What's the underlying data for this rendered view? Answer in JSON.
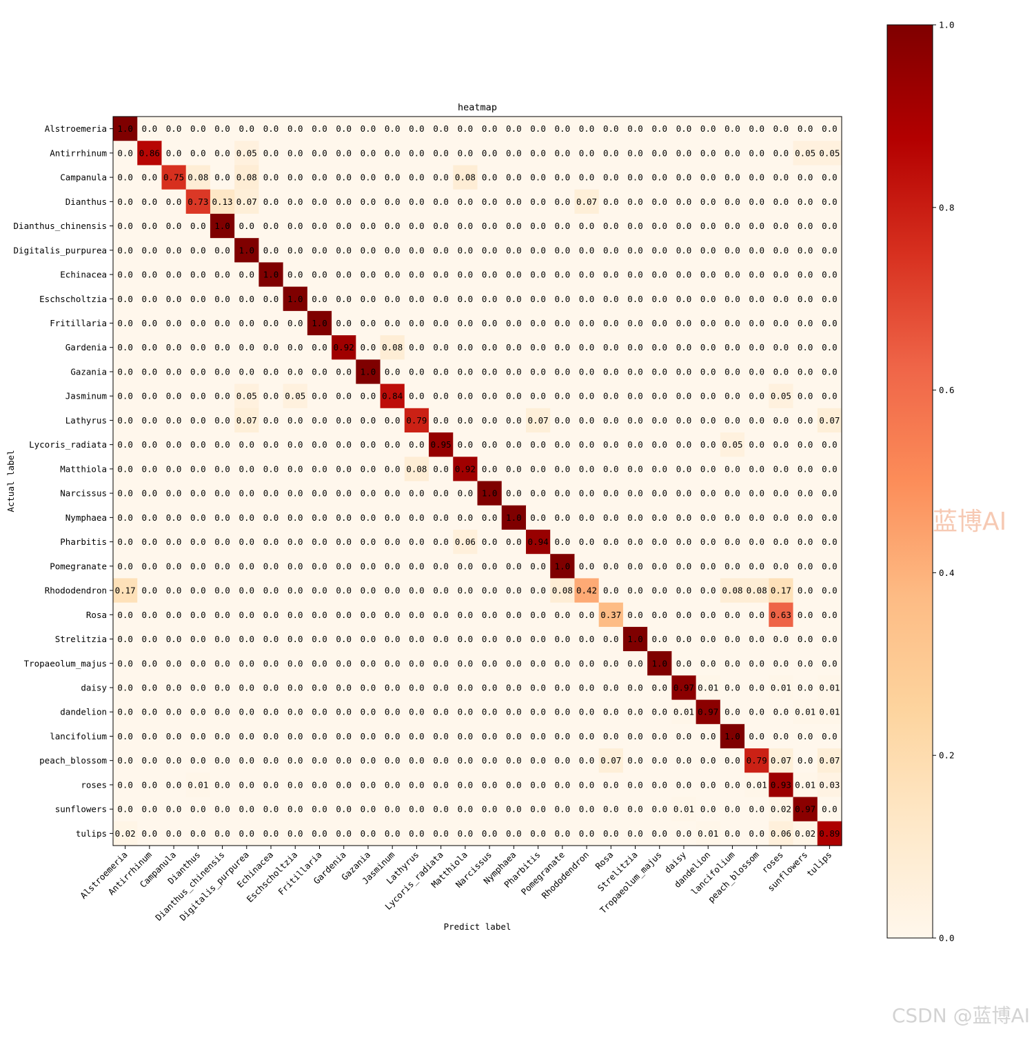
{
  "chart_data": {
    "type": "heatmap",
    "title": "heatmap",
    "xlabel": "Predict label",
    "ylabel": "Actual label",
    "labels": [
      "Alstroemeria",
      "Antirrhinum",
      "Campanula",
      "Dianthus",
      "Dianthus_chinensis",
      "Digitalis_purpurea",
      "Echinacea",
      "Eschscholtzia",
      "Fritillaria",
      "Gardenia",
      "Gazania",
      "Jasminum",
      "Lathyrus",
      "Lycoris_radiata",
      "Matthiola",
      "Narcissus",
      "Nymphaea",
      "Pharbitis",
      "Pomegranate",
      "Rhododendron",
      "Rosa",
      "Strelitzia",
      "Tropaeolum_majus",
      "daisy",
      "dandelion",
      "lancifolium",
      "peach_blossom",
      "roses",
      "sunflowers",
      "tulips"
    ],
    "values": [
      [
        "1.0",
        "0.0",
        "0.0",
        "0.0",
        "0.0",
        "0.0",
        "0.0",
        "0.0",
        "0.0",
        "0.0",
        "0.0",
        "0.0",
        "0.0",
        "0.0",
        "0.0",
        "0.0",
        "0.0",
        "0.0",
        "0.0",
        "0.0",
        "0.0",
        "0.0",
        "0.0",
        "0.0",
        "0.0",
        "0.0",
        "0.0",
        "0.0",
        "0.0",
        "0.0"
      ],
      [
        "0.0",
        "0.86",
        "0.0",
        "0.0",
        "0.0",
        "0.05",
        "0.0",
        "0.0",
        "0.0",
        "0.0",
        "0.0",
        "0.0",
        "0.0",
        "0.0",
        "0.0",
        "0.0",
        "0.0",
        "0.0",
        "0.0",
        "0.0",
        "0.0",
        "0.0",
        "0.0",
        "0.0",
        "0.0",
        "0.0",
        "0.0",
        "0.0",
        "0.05",
        "0.05"
      ],
      [
        "0.0",
        "0.0",
        "0.75",
        "0.08",
        "0.0",
        "0.08",
        "0.0",
        "0.0",
        "0.0",
        "0.0",
        "0.0",
        "0.0",
        "0.0",
        "0.0",
        "0.08",
        "0.0",
        "0.0",
        "0.0",
        "0.0",
        "0.0",
        "0.0",
        "0.0",
        "0.0",
        "0.0",
        "0.0",
        "0.0",
        "0.0",
        "0.0",
        "0.0",
        "0.0"
      ],
      [
        "0.0",
        "0.0",
        "0.0",
        "0.73",
        "0.13",
        "0.07",
        "0.0",
        "0.0",
        "0.0",
        "0.0",
        "0.0",
        "0.0",
        "0.0",
        "0.0",
        "0.0",
        "0.0",
        "0.0",
        "0.0",
        "0.0",
        "0.07",
        "0.0",
        "0.0",
        "0.0",
        "0.0",
        "0.0",
        "0.0",
        "0.0",
        "0.0",
        "0.0",
        "0.0"
      ],
      [
        "0.0",
        "0.0",
        "0.0",
        "0.0",
        "1.0",
        "0.0",
        "0.0",
        "0.0",
        "0.0",
        "0.0",
        "0.0",
        "0.0",
        "0.0",
        "0.0",
        "0.0",
        "0.0",
        "0.0",
        "0.0",
        "0.0",
        "0.0",
        "0.0",
        "0.0",
        "0.0",
        "0.0",
        "0.0",
        "0.0",
        "0.0",
        "0.0",
        "0.0",
        "0.0"
      ],
      [
        "0.0",
        "0.0",
        "0.0",
        "0.0",
        "0.0",
        "1.0",
        "0.0",
        "0.0",
        "0.0",
        "0.0",
        "0.0",
        "0.0",
        "0.0",
        "0.0",
        "0.0",
        "0.0",
        "0.0",
        "0.0",
        "0.0",
        "0.0",
        "0.0",
        "0.0",
        "0.0",
        "0.0",
        "0.0",
        "0.0",
        "0.0",
        "0.0",
        "0.0",
        "0.0"
      ],
      [
        "0.0",
        "0.0",
        "0.0",
        "0.0",
        "0.0",
        "0.0",
        "1.0",
        "0.0",
        "0.0",
        "0.0",
        "0.0",
        "0.0",
        "0.0",
        "0.0",
        "0.0",
        "0.0",
        "0.0",
        "0.0",
        "0.0",
        "0.0",
        "0.0",
        "0.0",
        "0.0",
        "0.0",
        "0.0",
        "0.0",
        "0.0",
        "0.0",
        "0.0",
        "0.0"
      ],
      [
        "0.0",
        "0.0",
        "0.0",
        "0.0",
        "0.0",
        "0.0",
        "0.0",
        "1.0",
        "0.0",
        "0.0",
        "0.0",
        "0.0",
        "0.0",
        "0.0",
        "0.0",
        "0.0",
        "0.0",
        "0.0",
        "0.0",
        "0.0",
        "0.0",
        "0.0",
        "0.0",
        "0.0",
        "0.0",
        "0.0",
        "0.0",
        "0.0",
        "0.0",
        "0.0"
      ],
      [
        "0.0",
        "0.0",
        "0.0",
        "0.0",
        "0.0",
        "0.0",
        "0.0",
        "0.0",
        "1.0",
        "0.0",
        "0.0",
        "0.0",
        "0.0",
        "0.0",
        "0.0",
        "0.0",
        "0.0",
        "0.0",
        "0.0",
        "0.0",
        "0.0",
        "0.0",
        "0.0",
        "0.0",
        "0.0",
        "0.0",
        "0.0",
        "0.0",
        "0.0",
        "0.0"
      ],
      [
        "0.0",
        "0.0",
        "0.0",
        "0.0",
        "0.0",
        "0.0",
        "0.0",
        "0.0",
        "0.0",
        "0.92",
        "0.0",
        "0.08",
        "0.0",
        "0.0",
        "0.0",
        "0.0",
        "0.0",
        "0.0",
        "0.0",
        "0.0",
        "0.0",
        "0.0",
        "0.0",
        "0.0",
        "0.0",
        "0.0",
        "0.0",
        "0.0",
        "0.0",
        "0.0"
      ],
      [
        "0.0",
        "0.0",
        "0.0",
        "0.0",
        "0.0",
        "0.0",
        "0.0",
        "0.0",
        "0.0",
        "0.0",
        "1.0",
        "0.0",
        "0.0",
        "0.0",
        "0.0",
        "0.0",
        "0.0",
        "0.0",
        "0.0",
        "0.0",
        "0.0",
        "0.0",
        "0.0",
        "0.0",
        "0.0",
        "0.0",
        "0.0",
        "0.0",
        "0.0",
        "0.0"
      ],
      [
        "0.0",
        "0.0",
        "0.0",
        "0.0",
        "0.0",
        "0.05",
        "0.0",
        "0.05",
        "0.0",
        "0.0",
        "0.0",
        "0.84",
        "0.0",
        "0.0",
        "0.0",
        "0.0",
        "0.0",
        "0.0",
        "0.0",
        "0.0",
        "0.0",
        "0.0",
        "0.0",
        "0.0",
        "0.0",
        "0.0",
        "0.0",
        "0.05",
        "0.0",
        "0.0"
      ],
      [
        "0.0",
        "0.0",
        "0.0",
        "0.0",
        "0.0",
        "0.07",
        "0.0",
        "0.0",
        "0.0",
        "0.0",
        "0.0",
        "0.0",
        "0.79",
        "0.0",
        "0.0",
        "0.0",
        "0.0",
        "0.07",
        "0.0",
        "0.0",
        "0.0",
        "0.0",
        "0.0",
        "0.0",
        "0.0",
        "0.0",
        "0.0",
        "0.0",
        "0.0",
        "0.07"
      ],
      [
        "0.0",
        "0.0",
        "0.0",
        "0.0",
        "0.0",
        "0.0",
        "0.0",
        "0.0",
        "0.0",
        "0.0",
        "0.0",
        "0.0",
        "0.0",
        "0.95",
        "0.0",
        "0.0",
        "0.0",
        "0.0",
        "0.0",
        "0.0",
        "0.0",
        "0.0",
        "0.0",
        "0.0",
        "0.0",
        "0.05",
        "0.0",
        "0.0",
        "0.0",
        "0.0"
      ],
      [
        "0.0",
        "0.0",
        "0.0",
        "0.0",
        "0.0",
        "0.0",
        "0.0",
        "0.0",
        "0.0",
        "0.0",
        "0.0",
        "0.0",
        "0.08",
        "0.0",
        "0.92",
        "0.0",
        "0.0",
        "0.0",
        "0.0",
        "0.0",
        "0.0",
        "0.0",
        "0.0",
        "0.0",
        "0.0",
        "0.0",
        "0.0",
        "0.0",
        "0.0",
        "0.0"
      ],
      [
        "0.0",
        "0.0",
        "0.0",
        "0.0",
        "0.0",
        "0.0",
        "0.0",
        "0.0",
        "0.0",
        "0.0",
        "0.0",
        "0.0",
        "0.0",
        "0.0",
        "0.0",
        "1.0",
        "0.0",
        "0.0",
        "0.0",
        "0.0",
        "0.0",
        "0.0",
        "0.0",
        "0.0",
        "0.0",
        "0.0",
        "0.0",
        "0.0",
        "0.0",
        "0.0"
      ],
      [
        "0.0",
        "0.0",
        "0.0",
        "0.0",
        "0.0",
        "0.0",
        "0.0",
        "0.0",
        "0.0",
        "0.0",
        "0.0",
        "0.0",
        "0.0",
        "0.0",
        "0.0",
        "0.0",
        "1.0",
        "0.0",
        "0.0",
        "0.0",
        "0.0",
        "0.0",
        "0.0",
        "0.0",
        "0.0",
        "0.0",
        "0.0",
        "0.0",
        "0.0",
        "0.0"
      ],
      [
        "0.0",
        "0.0",
        "0.0",
        "0.0",
        "0.0",
        "0.0",
        "0.0",
        "0.0",
        "0.0",
        "0.0",
        "0.0",
        "0.0",
        "0.0",
        "0.0",
        "0.06",
        "0.0",
        "0.0",
        "0.94",
        "0.0",
        "0.0",
        "0.0",
        "0.0",
        "0.0",
        "0.0",
        "0.0",
        "0.0",
        "0.0",
        "0.0",
        "0.0",
        "0.0"
      ],
      [
        "0.0",
        "0.0",
        "0.0",
        "0.0",
        "0.0",
        "0.0",
        "0.0",
        "0.0",
        "0.0",
        "0.0",
        "0.0",
        "0.0",
        "0.0",
        "0.0",
        "0.0",
        "0.0",
        "0.0",
        "0.0",
        "1.0",
        "0.0",
        "0.0",
        "0.0",
        "0.0",
        "0.0",
        "0.0",
        "0.0",
        "0.0",
        "0.0",
        "0.0",
        "0.0"
      ],
      [
        "0.17",
        "0.0",
        "0.0",
        "0.0",
        "0.0",
        "0.0",
        "0.0",
        "0.0",
        "0.0",
        "0.0",
        "0.0",
        "0.0",
        "0.0",
        "0.0",
        "0.0",
        "0.0",
        "0.0",
        "0.0",
        "0.08",
        "0.42",
        "0.0",
        "0.0",
        "0.0",
        "0.0",
        "0.0",
        "0.08",
        "0.08",
        "0.17",
        "0.0",
        "0.0"
      ],
      [
        "0.0",
        "0.0",
        "0.0",
        "0.0",
        "0.0",
        "0.0",
        "0.0",
        "0.0",
        "0.0",
        "0.0",
        "0.0",
        "0.0",
        "0.0",
        "0.0",
        "0.0",
        "0.0",
        "0.0",
        "0.0",
        "0.0",
        "0.0",
        "0.37",
        "0.0",
        "0.0",
        "0.0",
        "0.0",
        "0.0",
        "0.0",
        "0.63",
        "0.0",
        "0.0"
      ],
      [
        "0.0",
        "0.0",
        "0.0",
        "0.0",
        "0.0",
        "0.0",
        "0.0",
        "0.0",
        "0.0",
        "0.0",
        "0.0",
        "0.0",
        "0.0",
        "0.0",
        "0.0",
        "0.0",
        "0.0",
        "0.0",
        "0.0",
        "0.0",
        "0.0",
        "1.0",
        "0.0",
        "0.0",
        "0.0",
        "0.0",
        "0.0",
        "0.0",
        "0.0",
        "0.0"
      ],
      [
        "0.0",
        "0.0",
        "0.0",
        "0.0",
        "0.0",
        "0.0",
        "0.0",
        "0.0",
        "0.0",
        "0.0",
        "0.0",
        "0.0",
        "0.0",
        "0.0",
        "0.0",
        "0.0",
        "0.0",
        "0.0",
        "0.0",
        "0.0",
        "0.0",
        "0.0",
        "1.0",
        "0.0",
        "0.0",
        "0.0",
        "0.0",
        "0.0",
        "0.0",
        "0.0"
      ],
      [
        "0.0",
        "0.0",
        "0.0",
        "0.0",
        "0.0",
        "0.0",
        "0.0",
        "0.0",
        "0.0",
        "0.0",
        "0.0",
        "0.0",
        "0.0",
        "0.0",
        "0.0",
        "0.0",
        "0.0",
        "0.0",
        "0.0",
        "0.0",
        "0.0",
        "0.0",
        "0.0",
        "0.97",
        "0.01",
        "0.0",
        "0.0",
        "0.01",
        "0.0",
        "0.01"
      ],
      [
        "0.0",
        "0.0",
        "0.0",
        "0.0",
        "0.0",
        "0.0",
        "0.0",
        "0.0",
        "0.0",
        "0.0",
        "0.0",
        "0.0",
        "0.0",
        "0.0",
        "0.0",
        "0.0",
        "0.0",
        "0.0",
        "0.0",
        "0.0",
        "0.0",
        "0.0",
        "0.0",
        "0.01",
        "0.97",
        "0.0",
        "0.0",
        "0.0",
        "0.01",
        "0.01"
      ],
      [
        "0.0",
        "0.0",
        "0.0",
        "0.0",
        "0.0",
        "0.0",
        "0.0",
        "0.0",
        "0.0",
        "0.0",
        "0.0",
        "0.0",
        "0.0",
        "0.0",
        "0.0",
        "0.0",
        "0.0",
        "0.0",
        "0.0",
        "0.0",
        "0.0",
        "0.0",
        "0.0",
        "0.0",
        "0.0",
        "1.0",
        "0.0",
        "0.0",
        "0.0",
        "0.0"
      ],
      [
        "0.0",
        "0.0",
        "0.0",
        "0.0",
        "0.0",
        "0.0",
        "0.0",
        "0.0",
        "0.0",
        "0.0",
        "0.0",
        "0.0",
        "0.0",
        "0.0",
        "0.0",
        "0.0",
        "0.0",
        "0.0",
        "0.0",
        "0.0",
        "0.07",
        "0.0",
        "0.0",
        "0.0",
        "0.0",
        "0.0",
        "0.79",
        "0.07",
        "0.0",
        "0.07"
      ],
      [
        "0.0",
        "0.0",
        "0.0",
        "0.01",
        "0.0",
        "0.0",
        "0.0",
        "0.0",
        "0.0",
        "0.0",
        "0.0",
        "0.0",
        "0.0",
        "0.0",
        "0.0",
        "0.0",
        "0.0",
        "0.0",
        "0.0",
        "0.0",
        "0.0",
        "0.0",
        "0.0",
        "0.0",
        "0.0",
        "0.0",
        "0.01",
        "0.93",
        "0.01",
        "0.03"
      ],
      [
        "0.0",
        "0.0",
        "0.0",
        "0.0",
        "0.0",
        "0.0",
        "0.0",
        "0.0",
        "0.0",
        "0.0",
        "0.0",
        "0.0",
        "0.0",
        "0.0",
        "0.0",
        "0.0",
        "0.0",
        "0.0",
        "0.0",
        "0.0",
        "0.0",
        "0.0",
        "0.0",
        "0.01",
        "0.0",
        "0.0",
        "0.0",
        "0.02",
        "0.97",
        "0.0"
      ],
      [
        "0.02",
        "0.0",
        "0.0",
        "0.0",
        "0.0",
        "0.0",
        "0.0",
        "0.0",
        "0.0",
        "0.0",
        "0.0",
        "0.0",
        "0.0",
        "0.0",
        "0.0",
        "0.0",
        "0.0",
        "0.0",
        "0.0",
        "0.0",
        "0.0",
        "0.0",
        "0.0",
        "0.0",
        "0.01",
        "0.0",
        "0.0",
        "0.06",
        "0.02",
        "0.89"
      ]
    ],
    "colormap": "OrRd",
    "color_range": [
      0,
      1
    ],
    "colorbar_ticks": [
      "0.0",
      "0.2",
      "0.4",
      "0.6",
      "0.8",
      "1.0"
    ],
    "colorbar_stops": [
      "#fff7ec",
      "#fee8c8",
      "#fdd49e",
      "#fdbb84",
      "#fc8d59",
      "#ef6548",
      "#d7301f",
      "#b30000",
      "#7f0000"
    ],
    "grid": false
  },
  "watermarks": {
    "main": "蓝博AI",
    "footer": "CSDN @蓝博AI"
  }
}
